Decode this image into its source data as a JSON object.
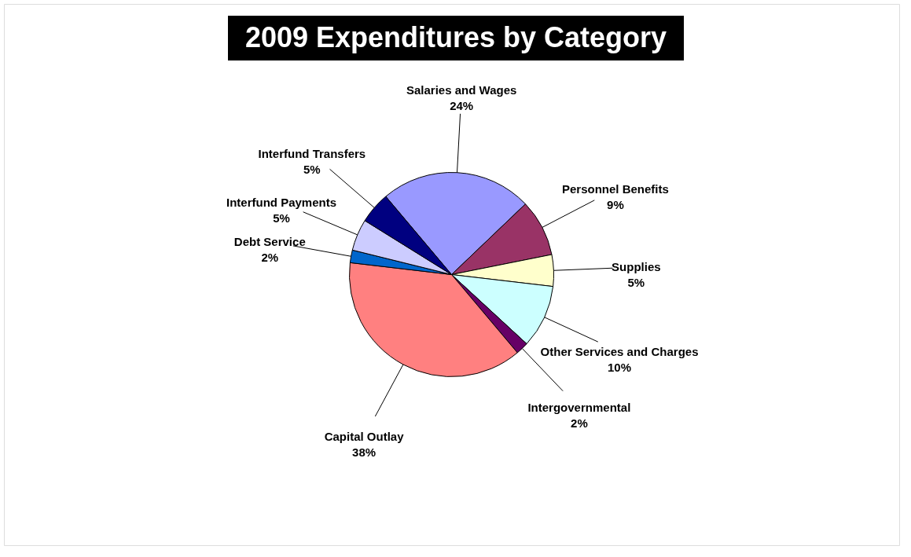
{
  "chart_data": {
    "type": "pie",
    "title": "2009 Expenditures by Category",
    "categories": [
      "Salaries and Wages",
      "Personnel Benefits",
      "Supplies",
      "Other Services and Charges",
      "Intergovernmental",
      "Capital Outlay",
      "Debt Service",
      "Interfund Payments",
      "Interfund Transfers"
    ],
    "values": [
      24,
      9,
      5,
      10,
      2,
      38,
      2,
      5,
      5
    ],
    "value_labels": [
      "24%",
      "9%",
      "5%",
      "10%",
      "2%",
      "38%",
      "2%",
      "5%",
      "5%"
    ],
    "colors": [
      "#9999ff",
      "#993366",
      "#ffffcc",
      "#ccffff",
      "#660066",
      "#ff8080",
      "#0066cc",
      "#ccccff",
      "#000080"
    ],
    "legend": false
  }
}
